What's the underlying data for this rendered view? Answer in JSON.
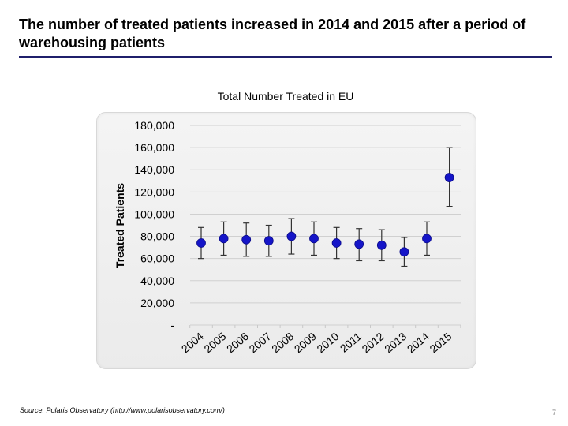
{
  "slide": {
    "title": "The number of treated patients increased in 2014 and 2015 after a period of warehousing patients",
    "source": "Source: Polaris Observatory (http://www.polarisobservatory.com/)",
    "page_number": "7"
  },
  "colors": {
    "point": "#1515c8",
    "error_bar": "#333333",
    "rule": "#1f1f6b"
  },
  "chart_data": {
    "type": "scatter",
    "title": "Total Number Treated in EU",
    "xlabel": "",
    "ylabel": "Treated Patients",
    "ylim": [
      0,
      180000
    ],
    "yticks": [
      0,
      20000,
      40000,
      60000,
      80000,
      100000,
      120000,
      140000,
      160000,
      180000
    ],
    "ytick_labels": [
      "-",
      "20,000",
      "40,000",
      "60,000",
      "80,000",
      "100,000",
      "120,000",
      "140,000",
      "160,000",
      "180,000"
    ],
    "categories": [
      "2004",
      "2005",
      "2006",
      "2007",
      "2008",
      "2009",
      "2010",
      "2011",
      "2012",
      "2013",
      "2014",
      "2015"
    ],
    "series": [
      {
        "name": "Total Number Treated",
        "values": [
          74000,
          78000,
          77000,
          76000,
          80000,
          78000,
          74000,
          73000,
          72000,
          66000,
          78000,
          133000
        ],
        "error_low": [
          60000,
          63000,
          62000,
          62000,
          64000,
          63000,
          60000,
          58000,
          58000,
          53000,
          63000,
          107000
        ],
        "error_high": [
          88000,
          93000,
          92000,
          90000,
          96000,
          93000,
          88000,
          87000,
          86000,
          79000,
          93000,
          160000
        ]
      }
    ]
  }
}
